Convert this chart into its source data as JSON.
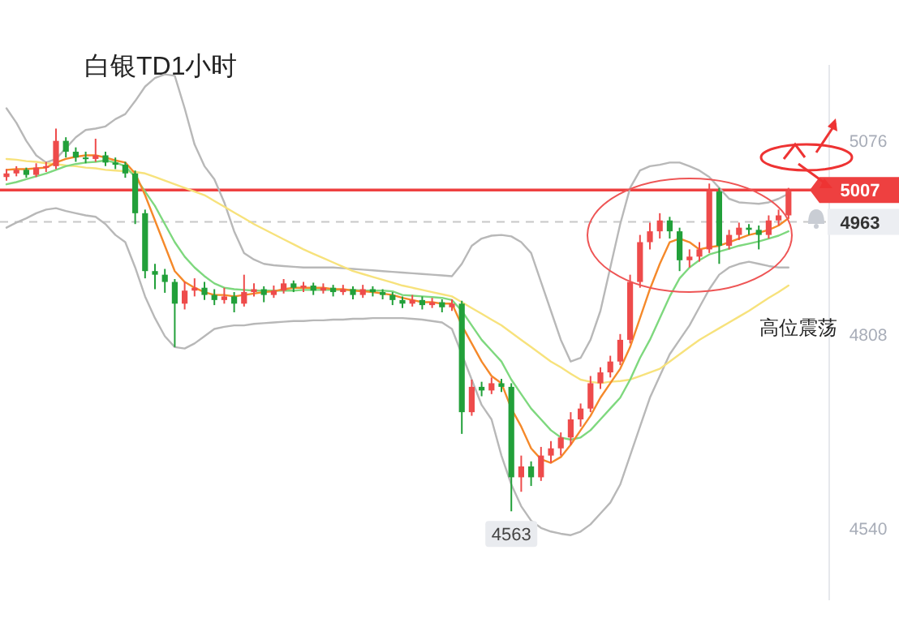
{
  "chart_data": {
    "type": "candlestick",
    "title": "白银TD1小时",
    "categories": [
      null,
      null,
      null,
      null,
      null,
      null,
      null,
      null,
      null,
      null,
      null,
      null,
      null,
      null,
      null,
      null,
      null,
      null,
      null,
      null,
      null,
      null,
      null,
      null,
      null,
      null,
      null,
      null,
      null,
      null,
      null,
      null,
      null,
      null,
      null,
      null,
      null,
      null,
      null,
      null,
      null,
      null,
      null,
      null,
      null,
      null,
      null,
      null,
      null,
      null,
      null,
      null,
      null,
      null,
      null,
      null,
      null,
      null,
      null,
      null,
      null,
      null,
      null,
      null,
      null,
      null,
      null,
      null,
      null,
      null,
      null,
      null,
      null,
      null,
      null,
      null,
      null,
      null,
      null,
      null
    ],
    "ohlc": [
      [
        5025,
        5036,
        5020,
        5030
      ],
      [
        5030,
        5040,
        5026,
        5035
      ],
      [
        5035,
        5038,
        5024,
        5028
      ],
      [
        5028,
        5044,
        5025,
        5038
      ],
      [
        5038,
        5046,
        5032,
        5040
      ],
      [
        5040,
        5092,
        5036,
        5075
      ],
      [
        5075,
        5080,
        5052,
        5060
      ],
      [
        5060,
        5066,
        5046,
        5052
      ],
      [
        5052,
        5060,
        5044,
        5050
      ],
      [
        5050,
        5078,
        5046,
        5055
      ],
      [
        5055,
        5060,
        5040,
        5045
      ],
      [
        5045,
        5052,
        5036,
        5042
      ],
      [
        5042,
        5046,
        5024,
        5030
      ],
      [
        5030,
        5034,
        4960,
        4975
      ],
      [
        4975,
        4980,
        4885,
        4895
      ],
      [
        4895,
        4905,
        4870,
        4890
      ],
      [
        4890,
        4898,
        4865,
        4880
      ],
      [
        4880,
        4884,
        4790,
        4850
      ],
      [
        4850,
        4880,
        4842,
        4868
      ],
      [
        4868,
        4885,
        4860,
        4872
      ],
      [
        4872,
        4880,
        4855,
        4862
      ],
      [
        4862,
        4870,
        4848,
        4855
      ],
      [
        4855,
        4872,
        4850,
        4860
      ],
      [
        4860,
        4866,
        4838,
        4850
      ],
      [
        4850,
        4890,
        4846,
        4866
      ],
      [
        4866,
        4878,
        4860,
        4870
      ],
      [
        4870,
        4874,
        4852,
        4862
      ],
      [
        4862,
        4875,
        4858,
        4868
      ],
      [
        4868,
        4884,
        4864,
        4878
      ],
      [
        4878,
        4882,
        4866,
        4872
      ],
      [
        4872,
        4880,
        4866,
        4875
      ],
      [
        4875,
        4879,
        4862,
        4868
      ],
      [
        4868,
        4878,
        4864,
        4872
      ],
      [
        4872,
        4876,
        4860,
        4866
      ],
      [
        4866,
        4876,
        4862,
        4870
      ],
      [
        4870,
        4874,
        4856,
        4862
      ],
      [
        4862,
        4876,
        4858,
        4870
      ],
      [
        4870,
        4874,
        4860,
        4866
      ],
      [
        4866,
        4870,
        4856,
        4862
      ],
      [
        4862,
        4866,
        4848,
        4855
      ],
      [
        4855,
        4860,
        4844,
        4850
      ],
      [
        4850,
        4862,
        4846,
        4855
      ],
      [
        4855,
        4860,
        4842,
        4848
      ],
      [
        4848,
        4858,
        4844,
        4852
      ],
      [
        4852,
        4856,
        4838,
        4845
      ],
      [
        4845,
        4856,
        4840,
        4850
      ],
      [
        4850,
        4854,
        4670,
        4700
      ],
      [
        4700,
        4745,
        4695,
        4735
      ],
      [
        4735,
        4742,
        4722,
        4730
      ],
      [
        4730,
        4748,
        4725,
        4740
      ],
      [
        4740,
        4746,
        4728,
        4735
      ],
      [
        4735,
        4740,
        4563,
        4610
      ],
      [
        4610,
        4640,
        4590,
        4625
      ],
      [
        4625,
        4632,
        4598,
        4610
      ],
      [
        4610,
        4652,
        4605,
        4640
      ],
      [
        4640,
        4660,
        4630,
        4650
      ],
      [
        4650,
        4672,
        4640,
        4665
      ],
      [
        4665,
        4700,
        4655,
        4690
      ],
      [
        4690,
        4712,
        4680,
        4705
      ],
      [
        4705,
        4750,
        4700,
        4740
      ],
      [
        4740,
        4762,
        4732,
        4755
      ],
      [
        4755,
        4778,
        4748,
        4770
      ],
      [
        4770,
        4808,
        4765,
        4800
      ],
      [
        4800,
        4890,
        4795,
        4880
      ],
      [
        4880,
        4945,
        4872,
        4935
      ],
      [
        4935,
        4962,
        4925,
        4950
      ],
      [
        4950,
        4975,
        4940,
        4965
      ],
      [
        4965,
        4970,
        4940,
        4950
      ],
      [
        4950,
        4955,
        4895,
        4910
      ],
      [
        4910,
        4925,
        4900,
        4915
      ],
      [
        4915,
        4935,
        4908,
        4925
      ],
      [
        4925,
        5016,
        4920,
        5005
      ],
      [
        5005,
        5010,
        4905,
        4930
      ],
      [
        4930,
        4952,
        4925,
        4945
      ],
      [
        4945,
        4962,
        4938,
        4955
      ],
      [
        4955,
        4960,
        4945,
        4952
      ],
      [
        4952,
        4958,
        4925,
        4945
      ],
      [
        4945,
        4972,
        4940,
        4965
      ],
      [
        4965,
        4980,
        4958,
        4972
      ],
      [
        4972,
        5010,
        4968,
        5005
      ]
    ],
    "colors": [
      "#ee4b4b",
      "#ee4b4b",
      "#22a03a",
      "#ee4b4b",
      "#ee4b4b",
      "#ee4b4b",
      "#22a03a",
      "#22a03a",
      "#22a03a",
      "#ee4b4b",
      "#22a03a",
      "#22a03a",
      "#22a03a",
      "#22a03a",
      "#22a03a",
      "#22a03a",
      "#22a03a",
      "#22a03a",
      "#ee4b4b",
      "#ee4b4b",
      "#22a03a",
      "#22a03a",
      "#ee4b4b",
      "#22a03a",
      "#ee4b4b",
      "#ee4b4b",
      "#22a03a",
      "#ee4b4b",
      "#ee4b4b",
      "#22a03a",
      "#ee4b4b",
      "#22a03a",
      "#ee4b4b",
      "#22a03a",
      "#ee4b4b",
      "#22a03a",
      "#ee4b4b",
      "#22a03a",
      "#22a03a",
      "#22a03a",
      "#22a03a",
      "#ee4b4b",
      "#22a03a",
      "#ee4b4b",
      "#22a03a",
      "#ee4b4b",
      "#22a03a",
      "#ee4b4b",
      "#22a03a",
      "#ee4b4b",
      "#22a03a",
      "#22a03a",
      "#ee4b4b",
      "#22a03a",
      "#ee4b4b",
      "#ee4b4b",
      "#ee4b4b",
      "#ee4b4b",
      "#ee4b4b",
      "#ee4b4b",
      "#ee4b4b",
      "#ee4b4b",
      "#ee4b4b",
      "#ee4b4b",
      "#ee4b4b",
      "#ee4b4b",
      "#ee4b4b",
      "#22a03a",
      "#22a03a",
      "#ee4b4b",
      "#ee4b4b",
      "#ee4b4b",
      "#22a03a",
      "#ee4b4b",
      "#ee4b4b",
      "#22a03a",
      "#22a03a",
      "#ee4b4b",
      "#ee4b4b",
      "#ee4b4b"
    ],
    "series": [
      {
        "type": "line",
        "color": "#b8b8b8",
        "values": [
          5120,
          5100,
          5075,
          5055,
          5045,
          5050,
          5065,
          5080,
          5090,
          5092,
          5095,
          5105,
          5112,
          5130,
          5150,
          5162,
          5167,
          5165,
          5120,
          5070,
          5040,
          5022,
          4990,
          4950,
          4920,
          4911,
          4905,
          4903,
          4902,
          4901,
          4900,
          4900,
          4900,
          4900,
          4899,
          4898,
          4897,
          4896,
          4895,
          4894,
          4893,
          4892,
          4891,
          4890,
          4889,
          4888,
          4905,
          4930,
          4940,
          4944,
          4945,
          4943,
          4935,
          4920,
          4880,
          4840,
          4800,
          4770,
          4775,
          4800,
          4840,
          4900,
          4960,
          5010,
          5034,
          5040,
          5042,
          5045,
          5045,
          5040,
          5034,
          5025,
          5010,
          4995,
          4990,
          4989,
          4988,
          4990,
          4995,
          5002
        ]
      },
      {
        "type": "line",
        "color": "#b8b8b8",
        "values": [
          4955,
          4962,
          4968,
          4975,
          4980,
          4982,
          4978,
          4975,
          4972,
          4970,
          4960,
          4945,
          4935,
          4900,
          4860,
          4830,
          4805,
          4790,
          4788,
          4795,
          4805,
          4815,
          4818,
          4820,
          4820,
          4822,
          4823,
          4824,
          4825,
          4826,
          4826,
          4827,
          4827,
          4828,
          4828,
          4829,
          4829,
          4830,
          4830,
          4830,
          4830,
          4829,
          4828,
          4826,
          4824,
          4815,
          4780,
          4745,
          4710,
          4690,
          4640,
          4600,
          4570,
          4550,
          4540,
          4535,
          4532,
          4530,
          4535,
          4545,
          4560,
          4575,
          4600,
          4640,
          4680,
          4720,
          4750,
          4780,
          4800,
          4820,
          4845,
          4870,
          4890,
          4900,
          4905,
          4908,
          4905,
          4902,
          4900,
          4900
        ]
      },
      {
        "type": "line",
        "color": "#f7e27c",
        "values": [
          5050,
          5049,
          5047,
          5046,
          5044,
          5043,
          5041,
          5040,
          5038,
          5037,
          5035,
          5034,
          5033,
          5032,
          5030,
          5025,
          5020,
          5015,
          5010,
          5005,
          5000,
          4992,
          4984,
          4976,
          4968,
          4960,
          4953,
          4946,
          4939,
          4932,
          4925,
          4919,
          4913,
          4907,
          4901,
          4895,
          4891,
          4887,
          4883,
          4879,
          4875,
          4872,
          4869,
          4866,
          4863,
          4860,
          4852,
          4844,
          4836,
          4828,
          4820,
          4810,
          4800,
          4790,
          4780,
          4770,
          4762,
          4753,
          4745,
          4742,
          4740,
          4742,
          4743,
          4745,
          4750,
          4755,
          4760,
          4770,
          4780,
          4790,
          4800,
          4808,
          4816,
          4824,
          4832,
          4840,
          4849,
          4858,
          4866,
          4875
        ]
      },
      {
        "type": "line",
        "color": "#7ed87e",
        "values": [
          5015,
          5018,
          5022,
          5026,
          5030,
          5035,
          5040,
          5043,
          5045,
          5046,
          5048,
          5045,
          5040,
          5025,
          5005,
          4985,
          4960,
          4935,
          4915,
          4900,
          4888,
          4878,
          4872,
          4870,
          4869,
          4868,
          4868,
          4868,
          4868,
          4868,
          4869,
          4869,
          4869,
          4869,
          4869,
          4869,
          4868,
          4868,
          4868,
          4867,
          4862,
          4861,
          4860,
          4859,
          4858,
          4855,
          4840,
          4820,
          4800,
          4785,
          4770,
          4745,
          4725,
          4705,
          4690,
          4675,
          4665,
          4662,
          4665,
          4675,
          4690,
          4705,
          4720,
          4745,
          4775,
          4800,
          4830,
          4860,
          4885,
          4900,
          4910,
          4918,
          4922,
          4926,
          4930,
          4933,
          4936,
          4940,
          4944,
          4950
        ]
      },
      {
        "type": "line",
        "color": "#f5892a",
        "values": [
          5035,
          5036,
          5036,
          5037,
          5038,
          5045,
          5050,
          5053,
          5055,
          5055,
          5052,
          5048,
          5045,
          5030,
          5000,
          4965,
          4930,
          4895,
          4880,
          4872,
          4866,
          4862,
          4862,
          4860,
          4862,
          4864,
          4866,
          4867,
          4870,
          4872,
          4872,
          4872,
          4872,
          4870,
          4870,
          4868,
          4867,
          4866,
          4864,
          4862,
          4858,
          4855,
          4852,
          4852,
          4850,
          4850,
          4820,
          4795,
          4770,
          4750,
          4740,
          4705,
          4680,
          4650,
          4635,
          4630,
          4638,
          4655,
          4675,
          4695,
          4720,
          4740,
          4760,
          4790,
          4830,
          4870,
          4905,
          4935,
          4940,
          4935,
          4925,
          4928,
          4930,
          4935,
          4940,
          4945,
          4948,
          4952,
          4958,
          4968
        ]
      }
    ],
    "ylim": [
      4440,
      5180
    ],
    "yticks": [
      4540,
      4808,
      5076
    ],
    "tick_labels": "y",
    "ref_lines": [
      {
        "axis": "y",
        "value": 5007,
        "label": "5007",
        "color": "#ee4040",
        "line_style": "solid"
      },
      {
        "axis": "y",
        "value": 4963,
        "label": "4963",
        "color": "#c8c8c8",
        "line_style": "dashed"
      }
    ],
    "annotations": [
      {
        "text": "4563",
        "y": 4563
      },
      "高位震荡"
    ]
  }
}
